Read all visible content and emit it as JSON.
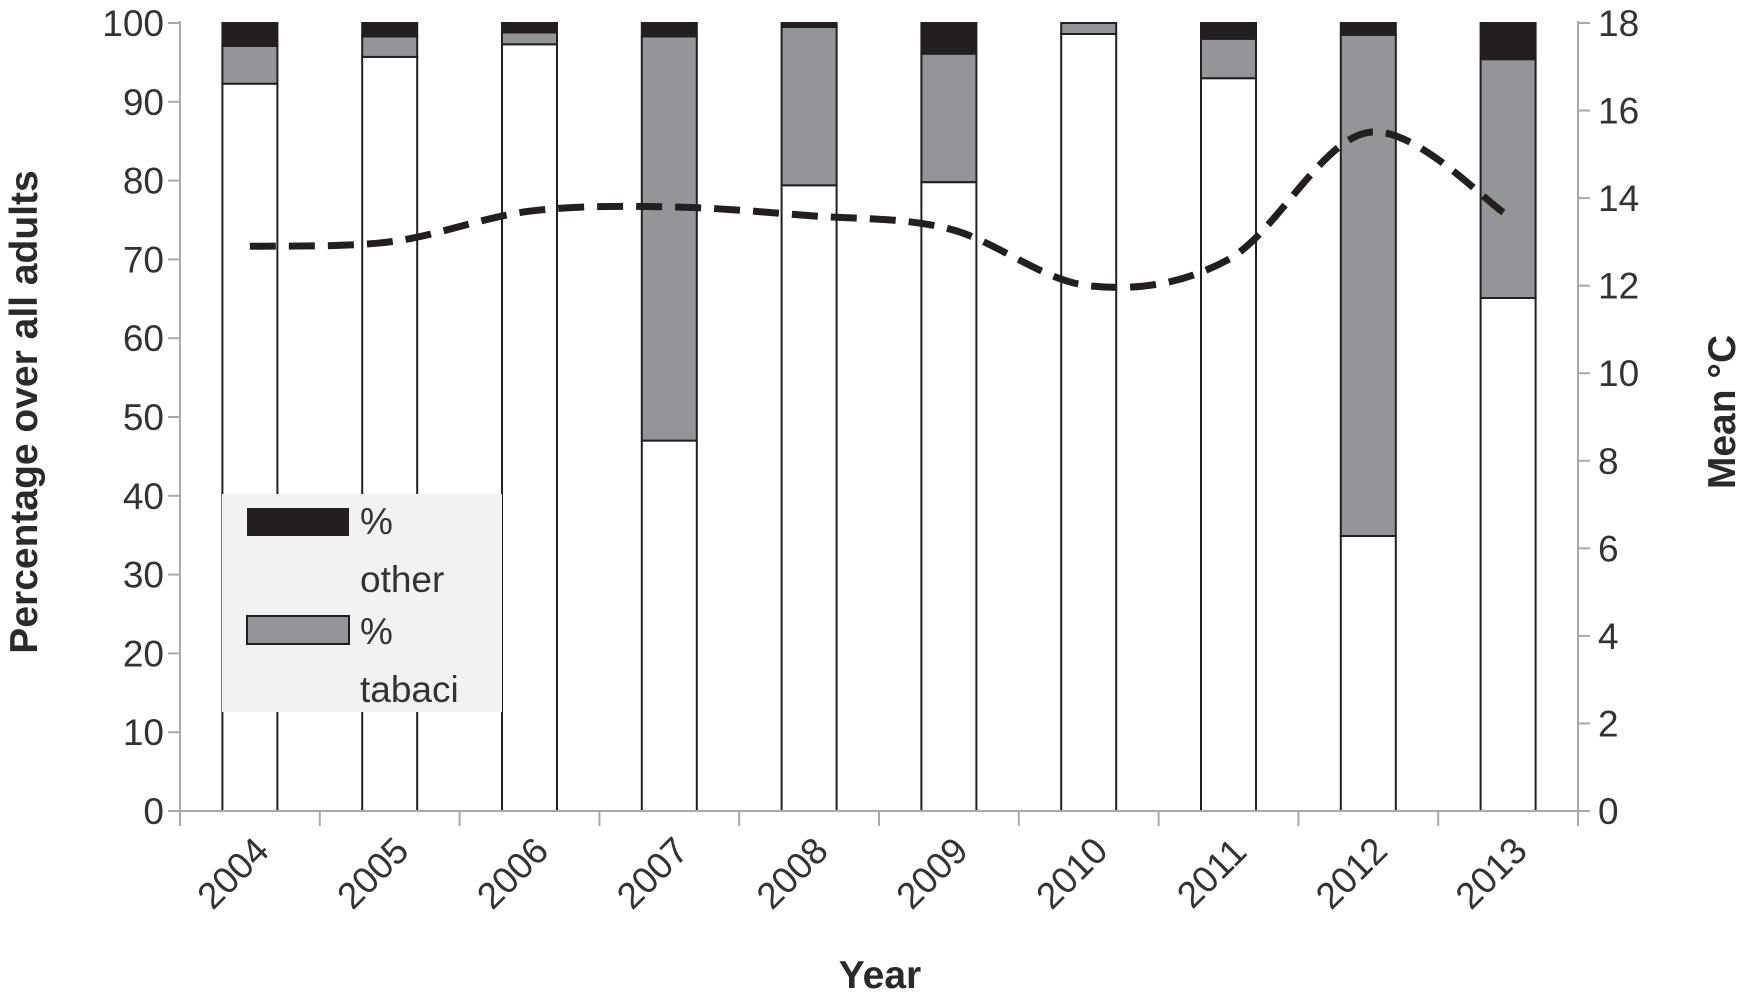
{
  "chart_data": {
    "type": "bar",
    "stacked": true,
    "categories": [
      "2004",
      "2005",
      "2006",
      "2007",
      "2008",
      "2009",
      "2010",
      "2011",
      "2012",
      "2013"
    ],
    "series": [
      {
        "name": "",
        "axis": "left",
        "color": "#ffffff",
        "values": [
          92.3,
          95.7,
          97.3,
          47.0,
          79.4,
          79.8,
          98.6,
          93.0,
          34.9,
          65.1
        ]
      },
      {
        "name": "% tabaci",
        "axis": "left",
        "color": "#939598",
        "values": [
          4.8,
          2.6,
          1.5,
          51.3,
          20.1,
          16.3,
          1.4,
          5.0,
          63.6,
          30.3
        ]
      },
      {
        "name": "% other",
        "axis": "left",
        "color": "#231f20",
        "values": [
          2.9,
          1.7,
          1.2,
          1.7,
          0.5,
          3.9,
          0.0,
          2.0,
          1.5,
          4.6
        ]
      },
      {
        "name": "",
        "axis": "right",
        "type": "line",
        "style": "dashed",
        "color": "#231f20",
        "values": [
          12.9,
          13.0,
          13.7,
          13.8,
          13.6,
          13.3,
          12.0,
          12.6,
          15.5,
          13.6
        ]
      }
    ],
    "xlabel": "Year",
    "ylabel": "Percentage over all adults",
    "y2label": "Mean °C",
    "ylim": [
      0,
      100
    ],
    "y2lim": [
      0,
      18
    ],
    "yticks": [
      "0",
      "10",
      "20",
      "30",
      "40",
      "50",
      "60",
      "70",
      "80",
      "90",
      "100"
    ],
    "y2ticks": [
      "0",
      "2",
      "4",
      "6",
      "8",
      "10",
      "12",
      "14",
      "16",
      "18"
    ],
    "legend": {
      "placement": "lower-left inside",
      "entries": [
        {
          "line1": "%",
          "line2": "other",
          "color": "#231f20"
        },
        {
          "line1": "%",
          "line2": "tabaci",
          "color": "#939598"
        }
      ]
    },
    "grid": false
  }
}
